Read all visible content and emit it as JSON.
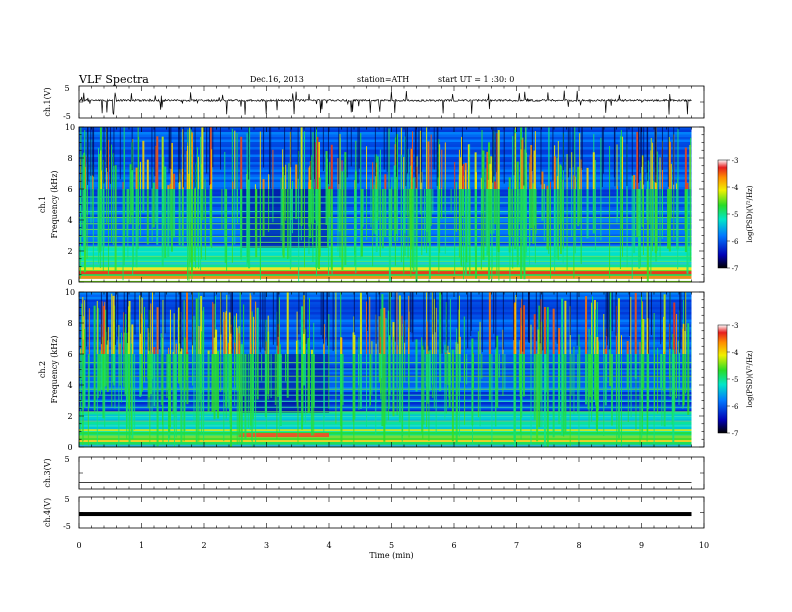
{
  "header": {
    "title": "VLF  Spectra",
    "date": "Dec.16, 2013",
    "station": "station=ATH",
    "start": "start  UT  =   1 :30: 0"
  },
  "chart_data": [
    {
      "type": "line",
      "panel": "ch1-waveform",
      "ylabel": "ch.1(V)",
      "y_ticks": [
        "5",
        "-5"
      ],
      "ylim": [
        -5,
        5
      ],
      "xlim": [
        0,
        10
      ],
      "baseline": 0.5,
      "typical_spread": 0.6,
      "data_end": 9.8
    },
    {
      "type": "heatmap",
      "panel": "ch1-spectrogram",
      "ylabel": "ch.1",
      "ylabel2": "Frequency  (kHz)",
      "y_ticks": [
        "0",
        "2",
        "4",
        "6",
        "8",
        "10"
      ],
      "ylim": [
        0,
        10
      ],
      "xlim": [
        0,
        10
      ],
      "data_end": 9.8,
      "colorbar": {
        "label": "log(PSD)(V²/Hz)",
        "ticks": [
          "-3",
          "-4",
          "-5",
          "-6",
          "-7"
        ],
        "range": [
          -7,
          -3
        ]
      }
    },
    {
      "type": "heatmap",
      "panel": "ch2-spectrogram",
      "ylabel": "ch.2",
      "ylabel2": "Frequency  (kHz)",
      "y_ticks": [
        "0",
        "2",
        "4",
        "6",
        "8",
        "10"
      ],
      "ylim": [
        0,
        10
      ],
      "xlim": [
        0,
        10
      ],
      "data_end": 9.8,
      "colorbar": {
        "label": "log(PSD)(V²/Hz)",
        "ticks": [
          "-3",
          "-4",
          "-5",
          "-6",
          "-7"
        ],
        "range": [
          -7,
          -3
        ]
      }
    },
    {
      "type": "line",
      "panel": "ch3-waveform",
      "ylabel": "ch.3(V)",
      "y_ticks": [
        "5"
      ],
      "ylim": [
        -5,
        5
      ],
      "xlim": [
        0,
        10
      ],
      "baseline": -3.0,
      "data_end": 9.8
    },
    {
      "type": "line",
      "panel": "ch4-waveform",
      "ylabel": "ch.4(V)",
      "y_ticks": [
        "5",
        "-5"
      ],
      "ylim": [
        -5,
        5
      ],
      "xlim": [
        0,
        10
      ],
      "baseline": -0.5,
      "data_end": 9.8
    }
  ],
  "x_axis": {
    "label": "Time  (min)",
    "ticks": [
      "0",
      "1",
      "2",
      "3",
      "4",
      "5",
      "6",
      "7",
      "8",
      "9",
      "10"
    ]
  }
}
